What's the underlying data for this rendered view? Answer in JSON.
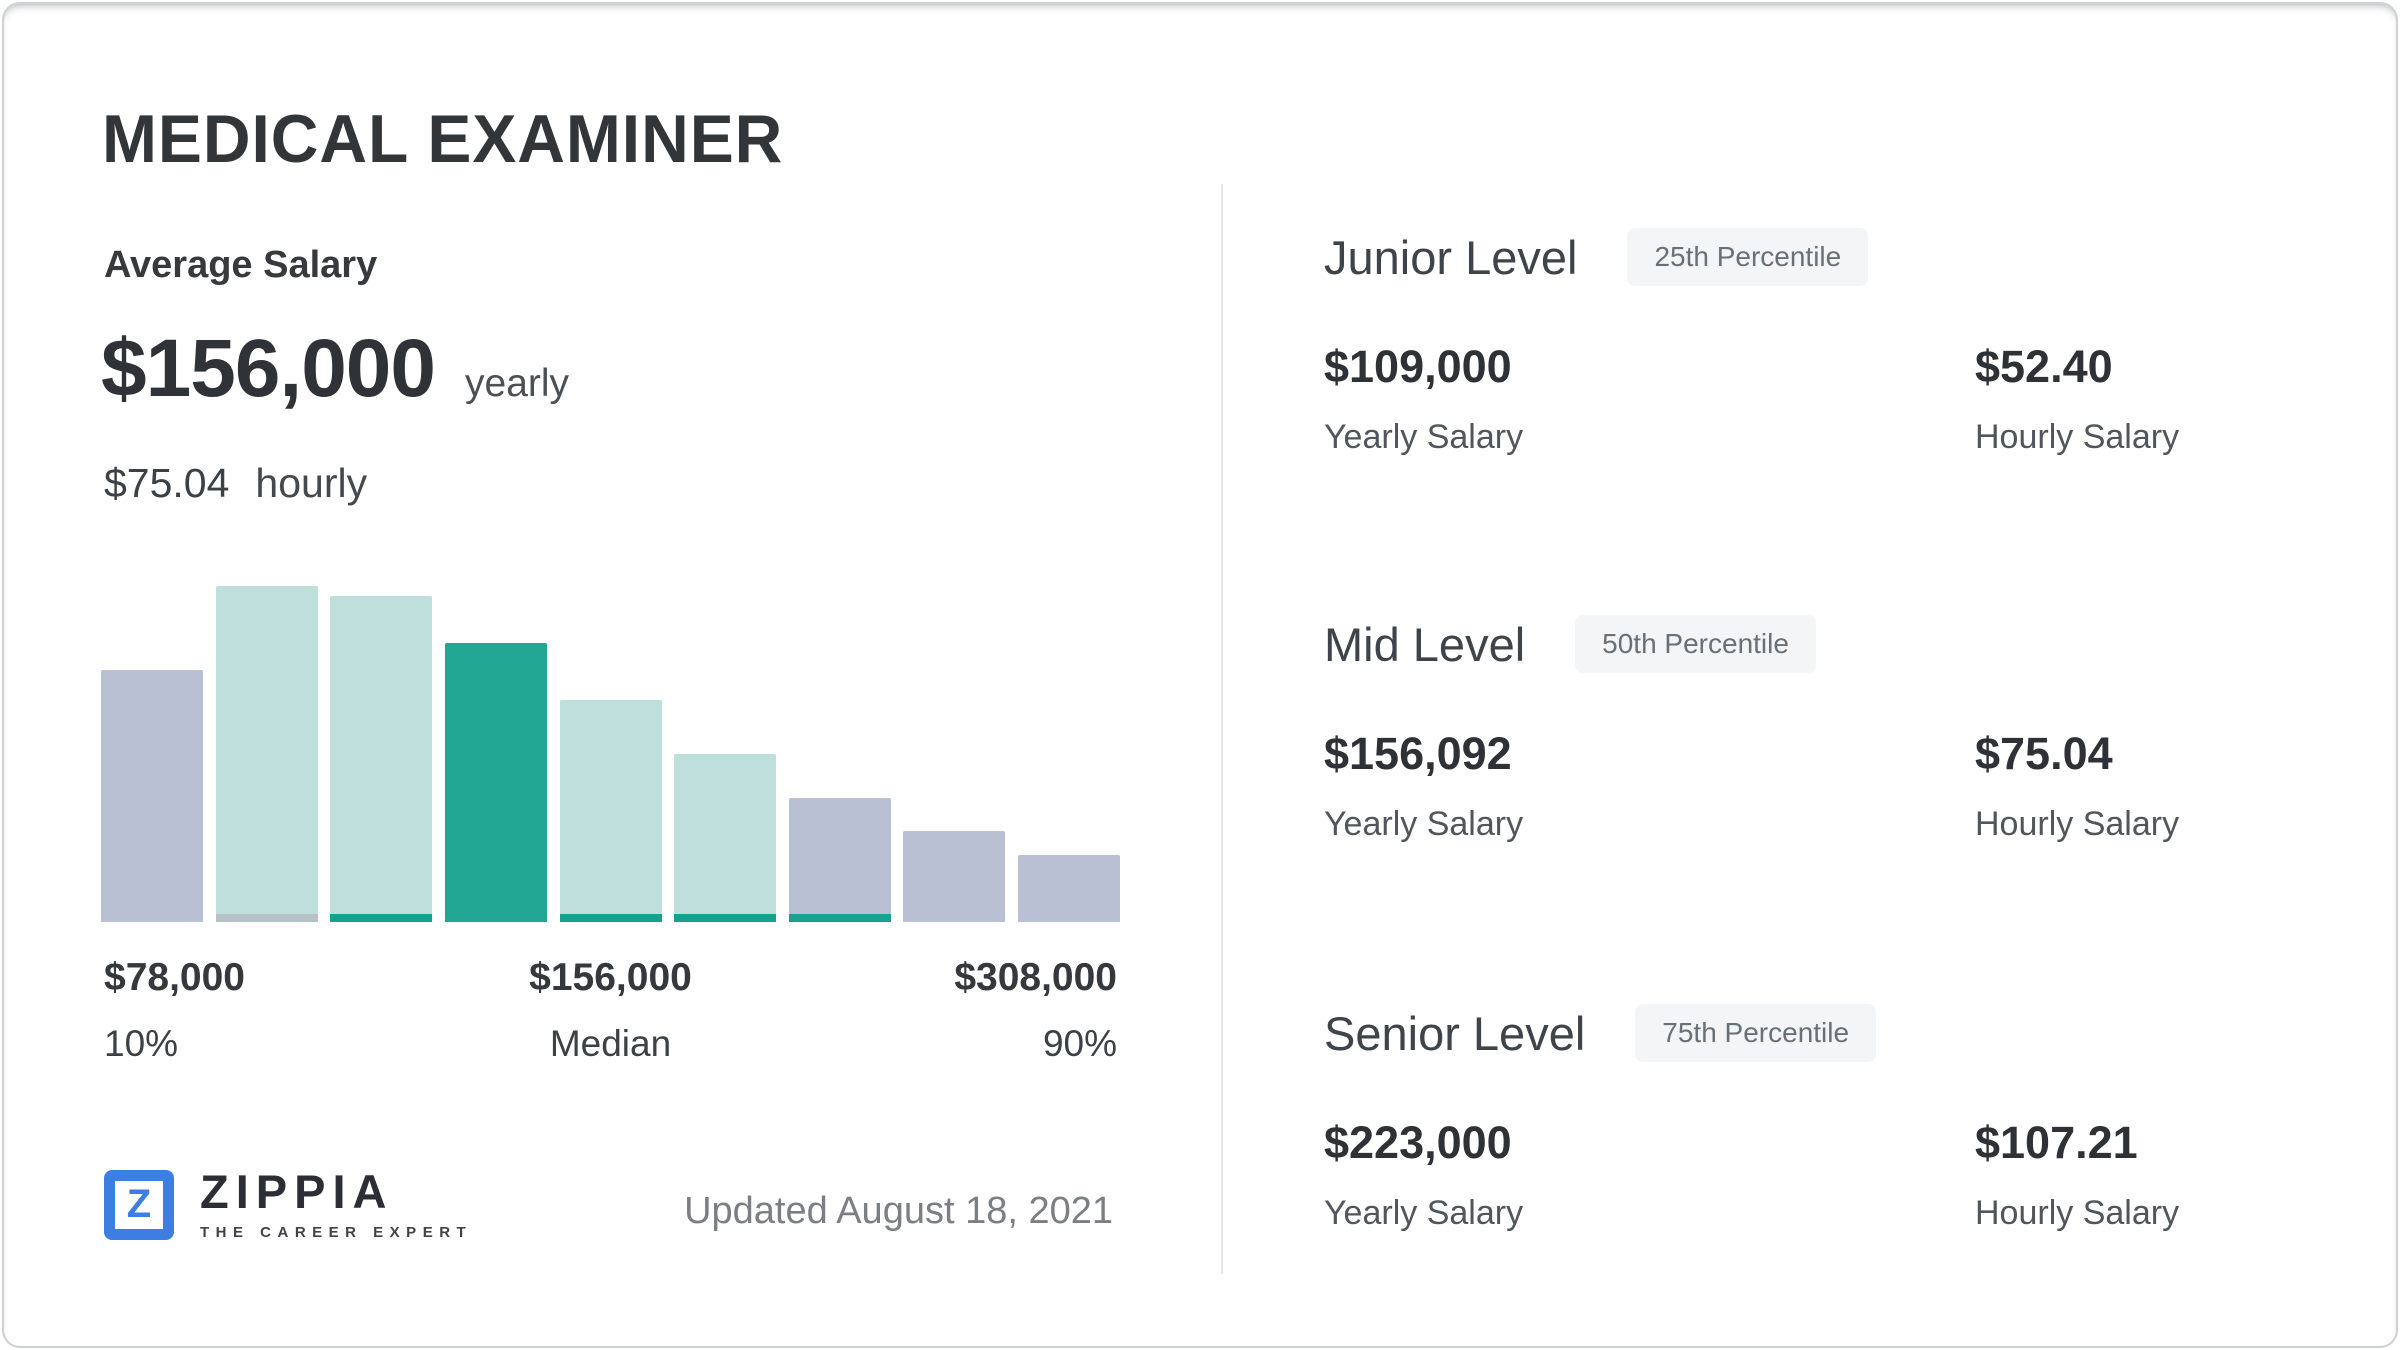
{
  "title": "MEDICAL EXAMINER",
  "average": {
    "heading": "Average Salary",
    "yearly_value": "$156,000",
    "yearly_unit": "yearly",
    "hourly_value": "$75.04",
    "hourly_unit": "hourly"
  },
  "chart_data": {
    "type": "bar",
    "title": "Salary distribution histogram",
    "ylim": [
      0,
      100
    ],
    "grid": false,
    "legend": false,
    "bars": [
      {
        "height_pct": 75,
        "fill": "lavender",
        "underline": "none"
      },
      {
        "height_pct": 100,
        "fill": "mint",
        "underline": "gray"
      },
      {
        "height_pct": 97,
        "fill": "mint",
        "underline": "teal"
      },
      {
        "height_pct": 83,
        "fill": "teal",
        "underline": "none"
      },
      {
        "height_pct": 66,
        "fill": "mint",
        "underline": "teal"
      },
      {
        "height_pct": 50,
        "fill": "mint",
        "underline": "teal"
      },
      {
        "height_pct": 37,
        "fill": "lavender",
        "underline": "teal"
      },
      {
        "height_pct": 27,
        "fill": "lavender",
        "underline": "none"
      },
      {
        "height_pct": 20,
        "fill": "lavender",
        "underline": "none"
      }
    ],
    "x_ticks": [
      {
        "label": "$78,000",
        "sublabel": "10%"
      },
      {
        "label": "$156,000",
        "sublabel": "Median"
      },
      {
        "label": "$308,000",
        "sublabel": "90%"
      }
    ],
    "palette": {
      "lavender": "#b9c0d4",
      "mint": "#bedfdc",
      "teal": "#23a795",
      "teal_line": "#16a28f",
      "gray_line": "#b5c2c8"
    }
  },
  "levels": [
    {
      "name": "Junior Level",
      "badge": "25th Percentile",
      "yearly_value": "$109,000",
      "yearly_label": "Yearly Salary",
      "hourly_value": "$52.40",
      "hourly_label": "Hourly Salary"
    },
    {
      "name": "Mid Level",
      "badge": "50th Percentile",
      "yearly_value": "$156,092",
      "yearly_label": "Yearly Salary",
      "hourly_value": "$75.04",
      "hourly_label": "Hourly Salary"
    },
    {
      "name": "Senior Level",
      "badge": "75th Percentile",
      "yearly_value": "$223,000",
      "yearly_label": "Yearly Salary",
      "hourly_value": "$107.21",
      "hourly_label": "Hourly Salary"
    }
  ],
  "footer": {
    "logo_mark": "Z",
    "brand": "ZIPPIA",
    "tagline": "THE CAREER EXPERT",
    "updated": "Updated August 18, 2021"
  },
  "colors": {
    "brand_blue": "#3c7ee1",
    "badge_bg": "#f3f5f6",
    "divider": "#e3e6e8",
    "bar_lavender": "#b9c0d4",
    "bar_mint": "#bedfdc",
    "bar_teal": "#23a795"
  }
}
